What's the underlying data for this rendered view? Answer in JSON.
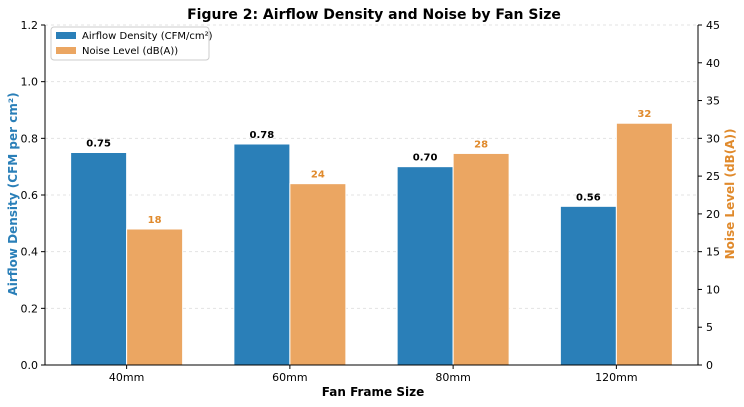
{
  "colors": {
    "airflow": "#2a7fb8",
    "noise": "#eba662",
    "airflow_label": "#2a7fb8",
    "noise_label": "#e08a2c",
    "grid": "#e3e3e3"
  },
  "chart_data": {
    "type": "bar",
    "title": "Figure 2: Airflow Density and Noise by Fan Size",
    "xlabel": "Fan Frame Size",
    "ylabel_left": "Airflow Density (CFM per cm²)",
    "ylabel_right": "Noise Level (dB(A))",
    "categories": [
      "40mm",
      "60mm",
      "80mm",
      "120mm"
    ],
    "series": [
      {
        "name": "Airflow Density (CFM/cm²)",
        "axis": "left",
        "values": [
          0.75,
          0.78,
          0.7,
          0.56
        ],
        "labels": [
          "0.75",
          "0.78",
          "0.70",
          "0.56"
        ]
      },
      {
        "name": "Noise Level (dB(A))",
        "axis": "right",
        "values": [
          18,
          24,
          28,
          32
        ],
        "labels": [
          "18",
          "24",
          "28",
          "32"
        ]
      }
    ],
    "ylim_left": [
      0,
      1.2
    ],
    "ylim_right": [
      0,
      45
    ],
    "yticks_left": [
      "0.0",
      "0.2",
      "0.4",
      "0.6",
      "0.8",
      "1.0",
      "1.2"
    ],
    "yticks_right": [
      "0",
      "5",
      "10",
      "15",
      "20",
      "25",
      "30",
      "35",
      "40",
      "45"
    ],
    "grid": true,
    "legend_position": "top-left"
  }
}
